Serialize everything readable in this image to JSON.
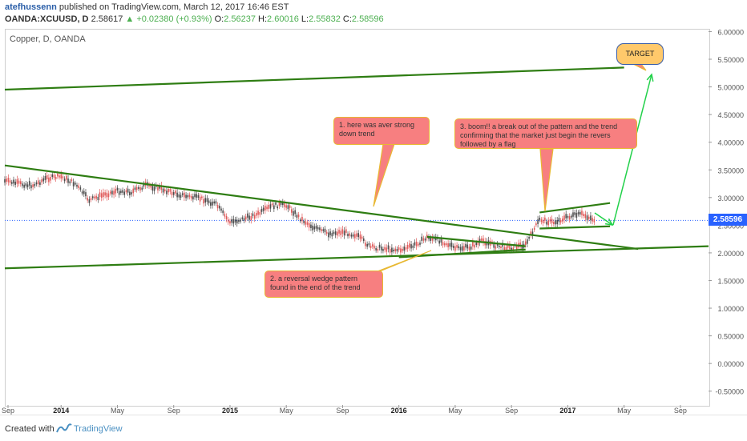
{
  "header": {
    "author": "atefhussenn",
    "published": "published on TradingView.com, March 12, 2017 16:46 EST",
    "symbol": "OANDA:XCUUSD, D",
    "price": "2.58617",
    "change": "▲ +0.02380 (+0.93%)",
    "open_label": "O:",
    "open": "2.56237",
    "high_label": "H:",
    "high": "2.60016",
    "low_label": "L:",
    "low": "2.55832",
    "close_label": "C:",
    "close": "2.58596"
  },
  "chart_title": "Copper, D, OANDA",
  "footer": {
    "created_with": "Created with",
    "brand": "TradingView"
  },
  "colors": {
    "trendline": "#2e7d12",
    "arrow": "#22d14a",
    "note_bg": "#f77f80",
    "note_border": "#e8b832",
    "price_line": "#2962ff",
    "candle_up": "#4a4a4a",
    "candle_down": "#e05a5a"
  },
  "annotations": {
    "note1": "1. here was aver strong down trend",
    "note2": "2. a reversal wedge pattern found in the end of the trend",
    "note3": "3. boom!! a break out of the pattern and the trend confirming that the market just begin the revers  followed by a flag",
    "target": "TARGET"
  },
  "current_price_label": "2.58596",
  "chart_data": {
    "type": "line",
    "title": "Copper, D, OANDA",
    "xlabel": "",
    "ylabel": "",
    "x_ticks": [
      "Sep",
      "2014",
      "May",
      "Sep",
      "2015",
      "May",
      "Sep",
      "2016",
      "May",
      "Sep",
      "2017",
      "May",
      "Sep"
    ],
    "y_ticks": [
      "6.00000",
      "5.50000",
      "5.00000",
      "4.50000",
      "4.00000",
      "3.50000",
      "3.00000",
      "2.50000",
      "2.00000",
      "1.50000",
      "1.00000",
      "0.50000",
      "0.00000",
      "-0.50000"
    ],
    "ylim": [
      -0.75,
      6.05
    ],
    "xlim": [
      "2013-09",
      "2017-11"
    ],
    "grid": false,
    "series": [
      {
        "x": [
          "2013-09",
          "2013-10",
          "2013-11",
          "2013-12",
          "2014-01",
          "2014-02",
          "2014-03",
          "2014-04",
          "2014-05",
          "2014-06",
          "2014-07",
          "2014-08",
          "2014-09",
          "2014-10",
          "2014-11",
          "2014-12",
          "2015-01",
          "2015-02",
          "2015-03",
          "2015-04",
          "2015-05",
          "2015-06",
          "2015-07",
          "2015-08",
          "2015-09",
          "2015-10",
          "2015-11",
          "2015-12",
          "2016-01",
          "2016-02",
          "2016-03",
          "2016-04",
          "2016-05",
          "2016-06",
          "2016-07",
          "2016-08",
          "2016-09",
          "2016-10",
          "2016-11",
          "2016-12",
          "2017-01",
          "2017-02",
          "2017-03"
        ],
        "values": [
          3.3,
          3.25,
          3.22,
          3.35,
          3.38,
          3.25,
          2.95,
          3.05,
          3.12,
          3.1,
          3.22,
          3.17,
          3.08,
          3.02,
          2.98,
          2.88,
          2.55,
          2.62,
          2.7,
          2.85,
          2.87,
          2.62,
          2.45,
          2.35,
          2.38,
          2.32,
          2.1,
          2.08,
          2.05,
          2.12,
          2.28,
          2.22,
          2.08,
          2.1,
          2.22,
          2.12,
          2.1,
          2.15,
          2.6,
          2.55,
          2.65,
          2.7,
          2.58596
        ]
      }
    ],
    "trendlines": [
      {
        "from": [
          "2013-09",
          4.95
        ],
        "to": [
          "2017-05",
          5.35
        ]
      },
      {
        "from": [
          "2013-09",
          3.58
        ],
        "to": [
          "2017-06",
          2.07
        ]
      },
      {
        "from": [
          "2013-09",
          1.72
        ],
        "to": [
          "2017-11",
          2.12
        ]
      },
      {
        "from": [
          "2016-03",
          2.29
        ],
        "to": [
          "2016-10",
          2.12
        ]
      },
      {
        "from": [
          "2016-01",
          1.92
        ],
        "to": [
          "2016-10",
          2.06
        ]
      },
      {
        "from": [
          "2016-11",
          2.73
        ],
        "to": [
          "2017-04",
          2.9
        ]
      },
      {
        "from": [
          "2016-11",
          2.44
        ],
        "to": [
          "2017-04",
          2.48
        ]
      }
    ],
    "current_price": 2.58596
  }
}
